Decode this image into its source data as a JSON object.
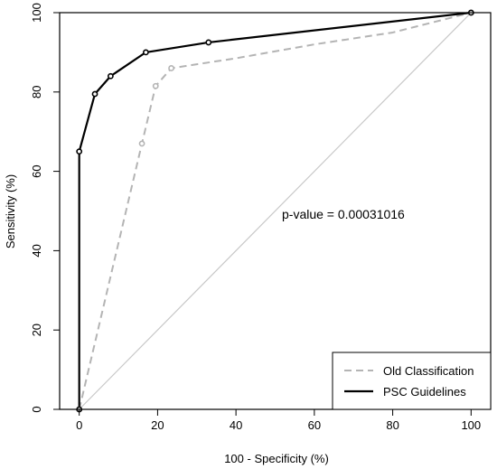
{
  "chart_data": {
    "type": "line",
    "xlabel": "100 - Specificity (%)",
    "ylabel": "Sensitivity (%)",
    "xlim": [
      -5,
      105
    ],
    "ylim": [
      0,
      100
    ],
    "x_ticks": [
      0,
      20,
      40,
      60,
      80,
      100
    ],
    "y_ticks": [
      0,
      20,
      40,
      60,
      80,
      100
    ],
    "grid": false,
    "legend_position": "bottom-right",
    "annotation": "p-value = 0.00031016",
    "reference_line": {
      "x": [
        0,
        100
      ],
      "y": [
        0,
        100
      ],
      "color": "#c8c8c8"
    },
    "series": [
      {
        "name": "Old Classification",
        "color": "#b4b4b4",
        "style": "dashed",
        "x": [
          0,
          0,
          16,
          19.5,
          23.5,
          40,
          60,
          80,
          100
        ],
        "y": [
          0,
          0,
          67,
          81.5,
          86,
          88.5,
          92,
          95,
          100
        ],
        "markers": [
          [
            0,
            0
          ],
          [
            16,
            67
          ],
          [
            19.5,
            81.5
          ],
          [
            23.5,
            86
          ],
          [
            100,
            100
          ]
        ]
      },
      {
        "name": "PSC Guidelines",
        "color": "#000000",
        "style": "solid",
        "x": [
          0,
          0,
          4,
          8,
          17,
          33,
          100
        ],
        "y": [
          0,
          65,
          79.5,
          84,
          90,
          92.5,
          100
        ],
        "markers": [
          [
            0,
            0
          ],
          [
            0,
            65
          ],
          [
            4,
            79.5
          ],
          [
            8,
            84
          ],
          [
            17,
            90
          ],
          [
            33,
            92.5
          ],
          [
            100,
            100
          ]
        ]
      }
    ]
  }
}
